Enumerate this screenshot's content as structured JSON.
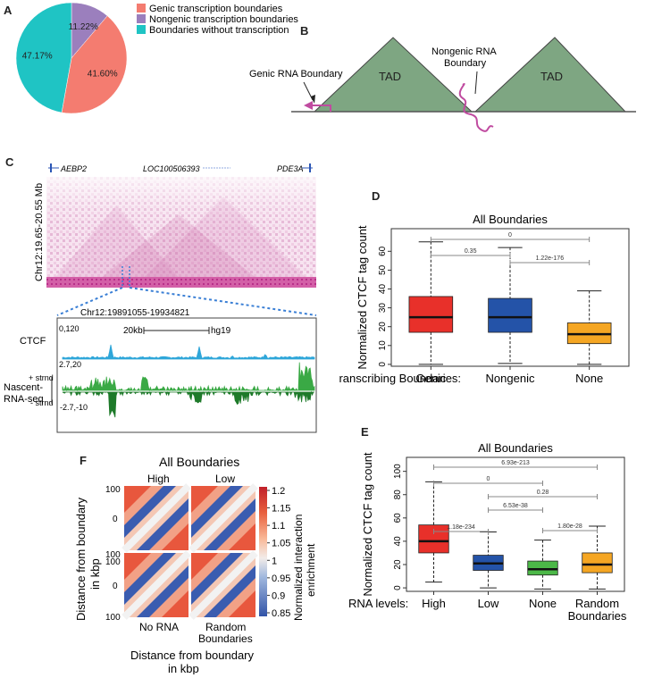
{
  "panels": {
    "A": "A",
    "B": "B",
    "C": "C",
    "D": "D",
    "E": "E",
    "F": "F"
  },
  "panelA": {
    "legend": [
      "Genic transcription boundaries",
      "Nongenic transcription boundaries",
      "Boundaries without transcription"
    ],
    "colors": {
      "genic": "#f47c70",
      "nongenic": "#9b7fbd",
      "none": "#1fc4c4"
    }
  },
  "panelB": {
    "tad1": "TAD",
    "tad2": "TAD",
    "genic_label": "Genic RNA Boundary",
    "nongenic_label_1": "Nongenic RNA",
    "nongenic_label_2": "Boundary"
  },
  "panelC": {
    "genes": [
      "AEBP2",
      "LOC100506393",
      "PDE3A"
    ],
    "ylabel": "Chr12:19.65-20.55 Mb",
    "zoom_region": "Chr12:19891055-19934821",
    "ctcf": "CTCF",
    "ctcf_range": "0,120",
    "scale": "20kb",
    "genome": "hg19",
    "nascent_1": "Nascent-",
    "nascent_2": "RNA-seq",
    "plus": "+ strnd",
    "minus": "- strnd",
    "plus_range": "2.7,20",
    "minus_range": "-2.7,-10"
  },
  "panelF": {
    "title": "All Boundaries",
    "top_labels": [
      "High",
      "Low"
    ],
    "bottom_labels": [
      "No RNA",
      "Random",
      "Boundaries"
    ],
    "ticks": [
      "100",
      "0",
      "100",
      "100",
      "0",
      "100"
    ],
    "ylabel_1": "Distance from boundary",
    "ylabel_2": "in kbp",
    "xlabel_1": "Distance from boundary",
    "xlabel_2": "in kbp",
    "cbar_label_1": "Normalized interaction",
    "cbar_label_2": "enrichment",
    "cbar_ticks": [
      "1.2",
      "1.15",
      "1.1",
      "1.05",
      "1",
      "0.95",
      "0.9",
      "0.85"
    ]
  },
  "chart_data": [
    {
      "id": "pieA",
      "type": "pie",
      "labels": [
        "Genic transcription boundaries",
        "Nongenic transcription boundaries",
        "Boundaries without transcription"
      ],
      "values": [
        41.6,
        11.22,
        47.17
      ],
      "value_labels": [
        "41.60%",
        "11.22%",
        "47.17%"
      ]
    },
    {
      "id": "boxD",
      "type": "box",
      "title": "All Boundaries",
      "ylabel": "Normalized CTCF tag count",
      "xlabel": "Transcribing Boundaries:",
      "categories": [
        "Genic",
        "Nongenic",
        "None"
      ],
      "colors": [
        "#e8302a",
        "#2453a8",
        "#f5a623"
      ],
      "ylim": [
        -1,
        72
      ],
      "yticks": [
        "0",
        "10",
        "20",
        "30",
        "40",
        "50",
        "60"
      ],
      "boxes": [
        {
          "whislo": 0,
          "q1": 17,
          "med": 25,
          "q3": 36,
          "whishi": 65
        },
        {
          "whislo": 0.5,
          "q1": 17,
          "med": 25,
          "q3": 35,
          "whishi": 62
        },
        {
          "whislo": 0,
          "q1": 11,
          "med": 16,
          "q3": 22,
          "whishi": 39
        }
      ],
      "comparisons": [
        {
          "a": 0,
          "b": 2,
          "label": "0"
        },
        {
          "a": 0,
          "b": 1,
          "label": "0.35"
        },
        {
          "a": 1,
          "b": 2,
          "label": "1.22e-176"
        }
      ]
    },
    {
      "id": "boxE",
      "type": "box",
      "title": "All Boundaries",
      "ylabel": "Normalized CTCF tag count",
      "xlabel": "RNA levels:",
      "categories": [
        "High",
        "Low",
        "None",
        "Random"
      ],
      "category_extra": "Boundaries",
      "colors": [
        "#e8302a",
        "#2453a8",
        "#4cb848",
        "#f5a623"
      ],
      "ylim": [
        -3,
        112
      ],
      "yticks": [
        "0",
        "20",
        "40",
        "60",
        "80",
        "100"
      ],
      "boxes": [
        {
          "whislo": 5,
          "q1": 30,
          "med": 40,
          "q3": 54,
          "whishi": 91
        },
        {
          "whislo": 0,
          "q1": 15,
          "med": 21,
          "q3": 28,
          "whishi": 48
        },
        {
          "whislo": -1,
          "q1": 11,
          "med": 16,
          "q3": 23,
          "whishi": 41
        },
        {
          "whislo": -1,
          "q1": 13,
          "med": 20,
          "q3": 30,
          "whishi": 53
        }
      ],
      "comparisons": [
        {
          "a": 0,
          "b": 3,
          "label": "6.93e-213"
        },
        {
          "a": 0,
          "b": 2,
          "label": "0"
        },
        {
          "a": 1,
          "b": 3,
          "label": "0.28"
        },
        {
          "a": 1,
          "b": 2,
          "label": "6.53e-38"
        },
        {
          "a": 0,
          "b": 1,
          "label": "1.18e-234"
        },
        {
          "a": 2,
          "b": 3,
          "label": "1.80e-28"
        }
      ]
    }
  ]
}
